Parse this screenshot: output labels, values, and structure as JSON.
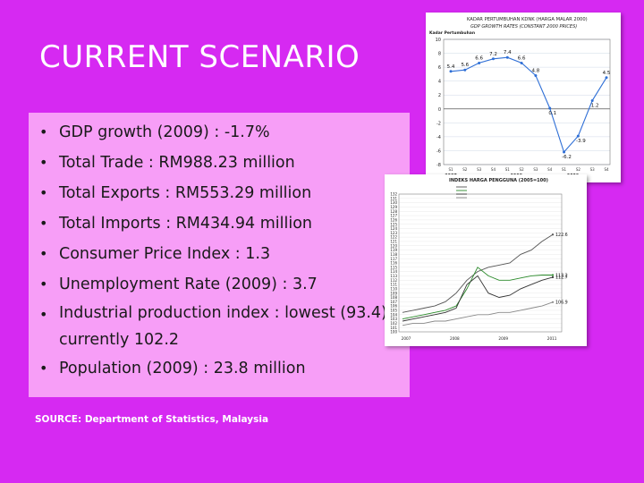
{
  "slide": {
    "title": "CURRENT SCENARIO",
    "bullets": [
      "GDP growth (2009) : -1.7%",
      "Total Trade : RM988.23 million",
      "Total Exports : RM553.29 million",
      "Total Imports : RM434.94 million",
      "Consumer Price Index : 1.3",
      "Unemployment Rate (2009) : 3.7",
      "Industrial production index : lowest (93.4), currently 102.2",
      "Population (2009) : 23.8 million"
    ],
    "source": "SOURCE: Department of Statistics, Malaysia",
    "colors": {
      "background": "#d629f2",
      "panel": "#f79ef7"
    }
  },
  "chart_data": [
    {
      "type": "line",
      "title": "KADAR PERTUMBUHAN KDNK (HARGA MALAR 2000)",
      "subtitle": "GDP GROWTH RATES (CONSTANT 2000 PRICES)",
      "ylabel": "Kadar Pertumbuhan",
      "ylim": [
        -8,
        10
      ],
      "yticks": [
        10,
        8,
        6,
        4,
        2,
        0,
        -2,
        -4,
        -6,
        -8
      ],
      "x": [
        "S1",
        "S2",
        "S3",
        "S4",
        "S1",
        "S2",
        "S3",
        "S4",
        "S1",
        "S2",
        "S3",
        "S4"
      ],
      "year_labels": [
        "2007",
        "2008",
        "2009"
      ],
      "values": [
        5.4,
        5.6,
        6.6,
        7.2,
        7.4,
        6.6,
        4.8,
        0.1,
        -6.2,
        -3.9,
        1.2,
        4.5
      ],
      "value_labels": [
        "5.4",
        "5.6",
        "6.6",
        "7.2",
        "7.4",
        "6.6",
        "4.8",
        "0.1",
        "-6.2",
        "-3.9",
        "1.2",
        "4.5"
      ],
      "grid": true
    },
    {
      "type": "line",
      "title": "INDEKS HARGA PENGGUNA (2005=100)",
      "ylim": [
        100,
        132
      ],
      "yticks": [
        132,
        131,
        130,
        129,
        128,
        127,
        126,
        125,
        124,
        123,
        122,
        121,
        120,
        119,
        118,
        117,
        116,
        115,
        114,
        113,
        112,
        111,
        110,
        109,
        108,
        107,
        106,
        105,
        104,
        103,
        102,
        101,
        100
      ],
      "year_labels": [
        "2007",
        "2008",
        "2009",
        "2011"
      ],
      "series": [
        {
          "values": [
            104.5,
            105,
            105.5,
            106,
            107,
            109,
            112,
            114,
            115,
            115.5,
            116,
            118,
            119,
            121,
            122.6
          ]
        },
        {
          "values": [
            103,
            103.5,
            104,
            104.5,
            105,
            106,
            110,
            115,
            113,
            112,
            112,
            112.5,
            113,
            113.2,
            113.2
          ]
        },
        {
          "values": [
            102.5,
            103,
            103.5,
            104,
            104.5,
            105.5,
            111,
            113,
            109,
            108,
            108.5,
            110,
            111,
            112,
            112.7
          ]
        },
        {
          "values": [
            101.5,
            102,
            102,
            102.5,
            102.5,
            103,
            103.5,
            104,
            104,
            104.5,
            104.5,
            105,
            105.5,
            106,
            106.9
          ]
        }
      ],
      "end_labels": [
        "122.6",
        "113.2",
        "112.7",
        "106.9"
      ],
      "colors": [
        "#555555",
        "#2a8a2a",
        "#333333",
        "#888888"
      ]
    }
  ]
}
